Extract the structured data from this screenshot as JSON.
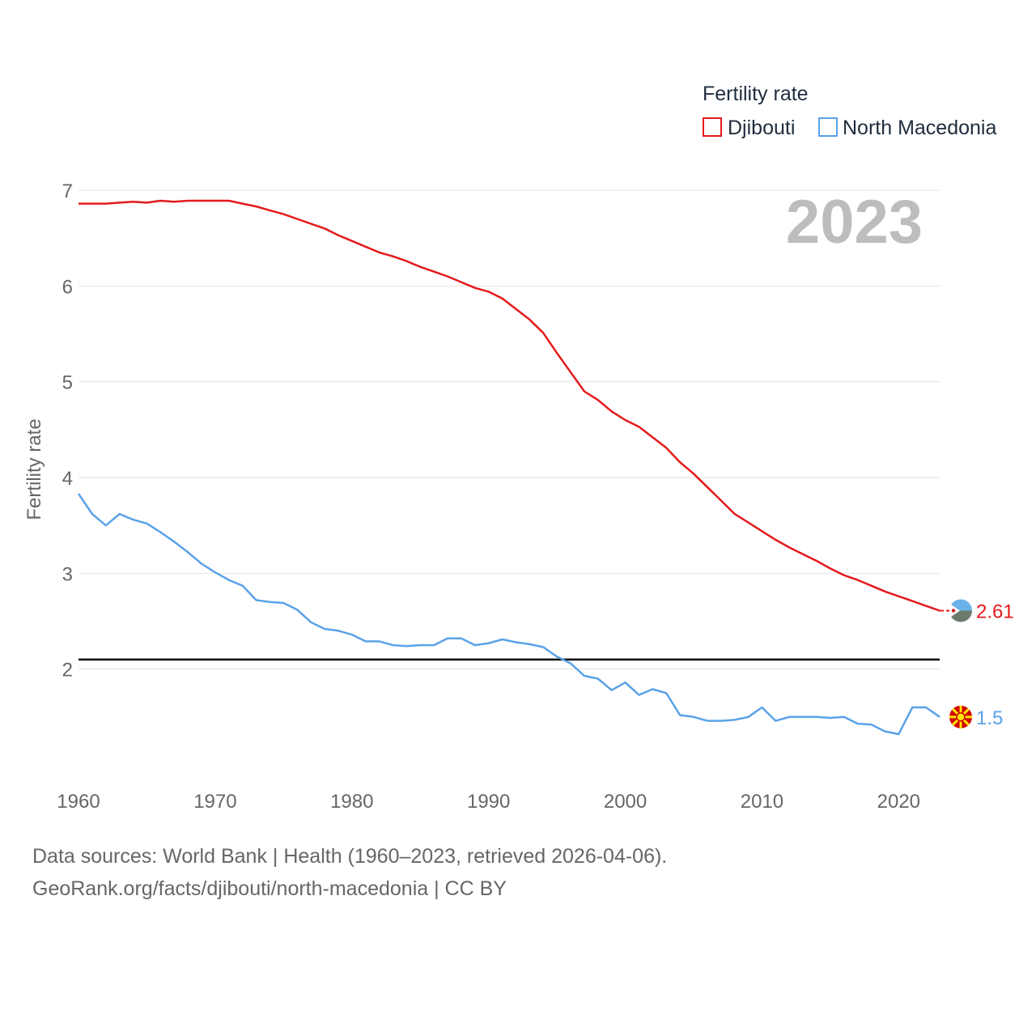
{
  "chart_data": {
    "type": "line",
    "title": "Fertility rate",
    "ylabel": "Fertility rate",
    "xlabel": "",
    "year_label": "2023",
    "xlim": [
      1960,
      2023
    ],
    "ylim": [
      1,
      7
    ],
    "x_ticks": [
      "1960",
      "1970",
      "1980",
      "1990",
      "2000",
      "2010",
      "2020"
    ],
    "y_ticks": [
      "2",
      "3",
      "4",
      "5",
      "6",
      "7"
    ],
    "reference_line": {
      "value": 2.1,
      "color": "#000000"
    },
    "x": [
      1960,
      1961,
      1962,
      1963,
      1964,
      1965,
      1966,
      1967,
      1968,
      1969,
      1970,
      1971,
      1972,
      1973,
      1974,
      1975,
      1976,
      1977,
      1978,
      1979,
      1980,
      1981,
      1982,
      1983,
      1984,
      1985,
      1986,
      1987,
      1988,
      1989,
      1990,
      1991,
      1992,
      1993,
      1994,
      1995,
      1996,
      1997,
      1998,
      1999,
      2000,
      2001,
      2002,
      2003,
      2004,
      2005,
      2006,
      2007,
      2008,
      2009,
      2010,
      2011,
      2012,
      2013,
      2014,
      2015,
      2016,
      2017,
      2018,
      2019,
      2020,
      2021,
      2022,
      2023
    ],
    "series": [
      {
        "name": "Djibouti",
        "color": "#e31a1c",
        "end_label": "2.61",
        "values": [
          6.86,
          6.86,
          6.86,
          6.87,
          6.88,
          6.87,
          6.89,
          6.88,
          6.89,
          6.89,
          6.89,
          6.89,
          6.86,
          6.83,
          6.79,
          6.75,
          6.7,
          6.65,
          6.6,
          6.53,
          6.47,
          6.41,
          6.35,
          6.31,
          6.26,
          6.2,
          6.15,
          6.1,
          6.04,
          5.98,
          5.94,
          5.87,
          5.76,
          5.65,
          5.51,
          5.3,
          5.1,
          4.9,
          4.81,
          4.69,
          4.6,
          4.53,
          4.42,
          4.31,
          4.16,
          4.04,
          3.9,
          3.76,
          3.62,
          3.53,
          3.44,
          3.35,
          3.27,
          3.2,
          3.13,
          3.05,
          2.98,
          2.93,
          2.87,
          2.81,
          2.76,
          2.71,
          2.66,
          2.61
        ]
      },
      {
        "name": "North Macedonia",
        "color": "#5aa2e8",
        "end_label": "1.5",
        "values": [
          3.83,
          3.62,
          3.5,
          3.62,
          3.56,
          3.52,
          3.43,
          3.33,
          3.22,
          3.1,
          3.01,
          2.93,
          2.87,
          2.72,
          2.7,
          2.69,
          2.62,
          2.49,
          2.42,
          2.4,
          2.36,
          2.29,
          2.29,
          2.25,
          2.24,
          2.25,
          2.25,
          2.32,
          2.32,
          2.25,
          2.27,
          2.31,
          2.28,
          2.26,
          2.23,
          2.13,
          2.06,
          1.93,
          1.9,
          1.78,
          1.86,
          1.73,
          1.79,
          1.75,
          1.52,
          1.5,
          1.46,
          1.46,
          1.47,
          1.5,
          1.6,
          1.46,
          1.5,
          1.5,
          1.5,
          1.49,
          1.5,
          1.43,
          1.42,
          1.35,
          1.32,
          1.6,
          1.6,
          1.5
        ]
      }
    ],
    "legend": {
      "title": "Fertility rate",
      "placement": "top-right"
    }
  },
  "source": {
    "line1": "Data sources: World Bank | Health (1960–2023, retrieved 2026-04-06).",
    "line2": "GeoRank.org/facts/djibouti/north-macedonia | CC BY"
  },
  "icons": [
    "djibouti-flag-icon",
    "north-macedonia-flag-icon"
  ]
}
